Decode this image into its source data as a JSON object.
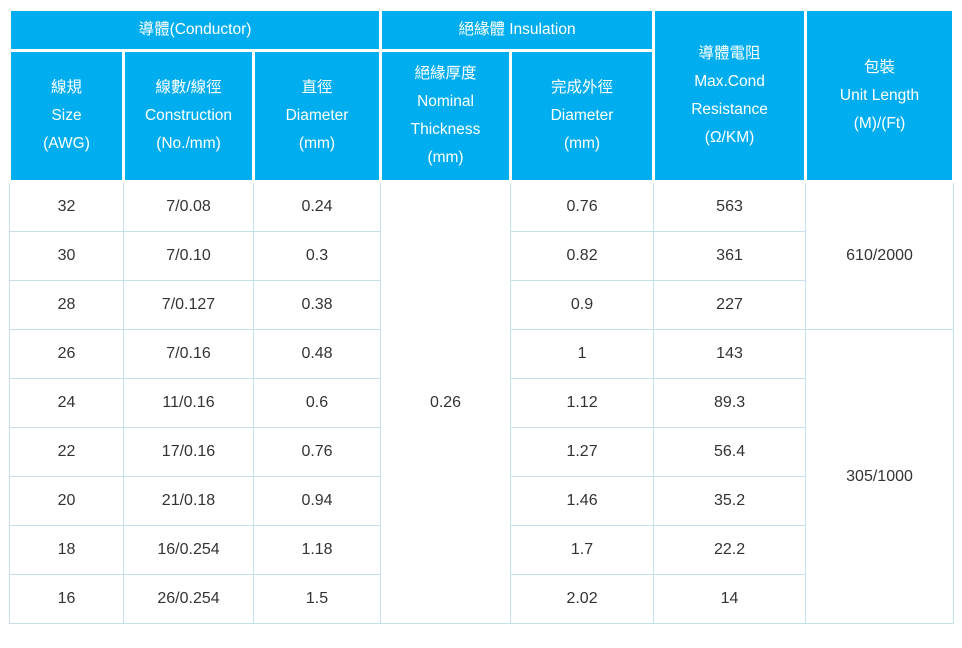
{
  "colors": {
    "header_bg": "#00AEEF",
    "header_text": "#FFFFFF",
    "cell_border": "#C3E0EC",
    "body_text": "#333333"
  },
  "table": {
    "header": {
      "conductor_group": "導體(Conductor)",
      "insulation_group": "絕緣體 Insulation",
      "size": "線規\nSize\n(AWG)",
      "construction": "線數/線徑\nConstruction\n(No./mm)",
      "diameter": "直徑\nDiameter\n(mm)",
      "thickness": "絕緣厚度\nNominal\nThickness\n(mm)",
      "outer_diameter": "完成外徑\nDiameter\n(mm)",
      "resistance": "導體電阻\nMax.Cond\nResistance\n(Ω/KM)",
      "packaging": "包裝\nUnit Length\n(M)/(Ft)"
    },
    "merged": {
      "nominal_thickness": "0.26",
      "unit_length_group1": "610/2000",
      "unit_length_group2": "305/1000"
    },
    "rows": [
      {
        "size": "32",
        "construction": "7/0.08",
        "diameter": "0.24",
        "od": "0.76",
        "resistance": "563"
      },
      {
        "size": "30",
        "construction": "7/0.10",
        "diameter": "0.3",
        "od": "0.82",
        "resistance": "361"
      },
      {
        "size": "28",
        "construction": "7/0.127",
        "diameter": "0.38",
        "od": "0.9",
        "resistance": "227"
      },
      {
        "size": "26",
        "construction": "7/0.16",
        "diameter": "0.48",
        "od": "1",
        "resistance": "143"
      },
      {
        "size": "24",
        "construction": "11/0.16",
        "diameter": "0.6",
        "od": "1.12",
        "resistance": "89.3"
      },
      {
        "size": "22",
        "construction": "17/0.16",
        "diameter": "0.76",
        "od": "1.27",
        "resistance": "56.4"
      },
      {
        "size": "20",
        "construction": "21/0.18",
        "diameter": "0.94",
        "od": "1.46",
        "resistance": "35.2"
      },
      {
        "size": "18",
        "construction": "16/0.254",
        "diameter": "1.18",
        "od": "1.7",
        "resistance": "22.2"
      },
      {
        "size": "16",
        "construction": "26/0.254",
        "diameter": "1.5",
        "od": "2.02",
        "resistance": "14"
      }
    ]
  }
}
